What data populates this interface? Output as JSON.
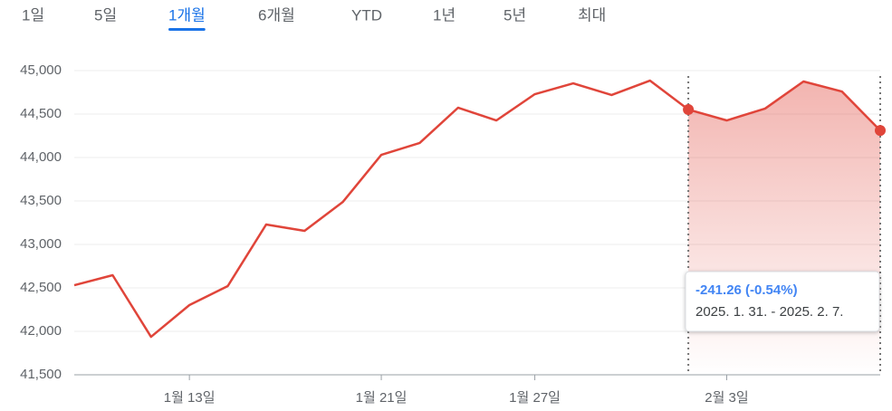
{
  "tabs": [
    "1일",
    "5일",
    "1개월",
    "6개월",
    "YTD",
    "1년",
    "5년",
    "최대"
  ],
  "active_tab": 2,
  "chart_data": {
    "type": "line",
    "categories": [
      null,
      null,
      null,
      "1월 13일",
      null,
      null,
      null,
      null,
      "1월 21일",
      null,
      null,
      null,
      "1월 27일",
      null,
      null,
      null,
      null,
      "2월 3일",
      null,
      null,
      null,
      null
    ],
    "series": [
      {
        "name": null,
        "color": "#e0453a",
        "values": [
          42531,
          42646,
          41937,
          42302,
          42521,
          43229,
          43156,
          43490,
          44031,
          44167,
          44573,
          44427,
          44729,
          44854,
          44719,
          44885,
          44552,
          44427,
          44563,
          44875,
          44760,
          44311
        ]
      }
    ],
    "ylim": [
      41500,
      45000
    ],
    "yticks": [
      {
        "value": 41500,
        "label": "41,500"
      },
      {
        "value": 42000,
        "label": "42,000"
      },
      {
        "value": 42500,
        "label": "42,500"
      },
      {
        "value": 43000,
        "label": "43,000"
      },
      {
        "value": 43500,
        "label": "43,500"
      },
      {
        "value": 44000,
        "label": "44,000"
      },
      {
        "value": 44500,
        "label": "44,500"
      },
      {
        "value": 45000,
        "label": "45,000"
      }
    ],
    "grid": true,
    "highlight": {
      "from_index": 16,
      "to_index": 21,
      "change_label": "-241.26 (-0.54%)",
      "range_label": "2025. 1. 31. - 2025. 2. 7."
    }
  }
}
